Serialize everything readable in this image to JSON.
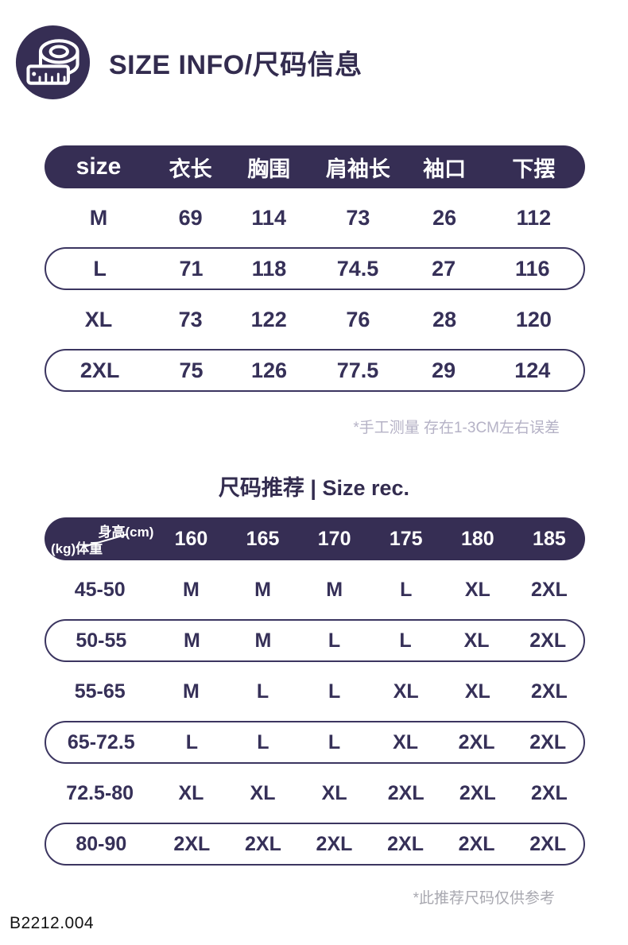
{
  "page": {
    "header": {
      "title": "SIZE INFO/尺码信息",
      "icon": "tape-measure-icon"
    },
    "colors": {
      "primary": "#362e54",
      "text": "#363058",
      "note1": "#b5b2c6",
      "note2": "#a8a8b0"
    },
    "size_table": {
      "headers": [
        "size",
        "衣长",
        "胸围",
        "肩袖长",
        "袖口",
        "下摆"
      ],
      "rows": [
        {
          "cells": [
            "M",
            "69",
            "114",
            "73",
            "26",
            "112"
          ],
          "outlined": false
        },
        {
          "cells": [
            "L",
            "71",
            "118",
            "74.5",
            "27",
            "116"
          ],
          "outlined": true
        },
        {
          "cells": [
            "XL",
            "73",
            "122",
            "76",
            "28",
            "120"
          ],
          "outlined": false
        },
        {
          "cells": [
            "2XL",
            "75",
            "126",
            "77.5",
            "29",
            "124"
          ],
          "outlined": true
        }
      ],
      "note": "*手工测量 存在1-3CM左右误差"
    },
    "recommend_section": {
      "title": "尺码推荐 | Size rec.",
      "header_corner": {
        "top_right": "身高(cm)",
        "bottom_left": "(kg)体重"
      },
      "height_headers": [
        "160",
        "165",
        "170",
        "175",
        "180",
        "185"
      ],
      "rows": [
        {
          "weight": "45-50",
          "sizes": [
            "M",
            "M",
            "M",
            "L",
            "XL",
            "2XL"
          ],
          "outlined": false
        },
        {
          "weight": "50-55",
          "sizes": [
            "M",
            "M",
            "L",
            "L",
            "XL",
            "2XL"
          ],
          "outlined": true
        },
        {
          "weight": "55-65",
          "sizes": [
            "M",
            "L",
            "L",
            "XL",
            "XL",
            "2XL"
          ],
          "outlined": false
        },
        {
          "weight": "65-72.5",
          "sizes": [
            "L",
            "L",
            "L",
            "XL",
            "2XL",
            "2XL"
          ],
          "outlined": true
        },
        {
          "weight": "72.5-80",
          "sizes": [
            "XL",
            "XL",
            "XL",
            "2XL",
            "2XL",
            "2XL"
          ],
          "outlined": false
        },
        {
          "weight": "80-90",
          "sizes": [
            "2XL",
            "2XL",
            "2XL",
            "2XL",
            "2XL",
            "2XL"
          ],
          "outlined": true
        }
      ],
      "note": "*此推荐尺码仅供参考"
    },
    "product_code": "B2212.004"
  }
}
